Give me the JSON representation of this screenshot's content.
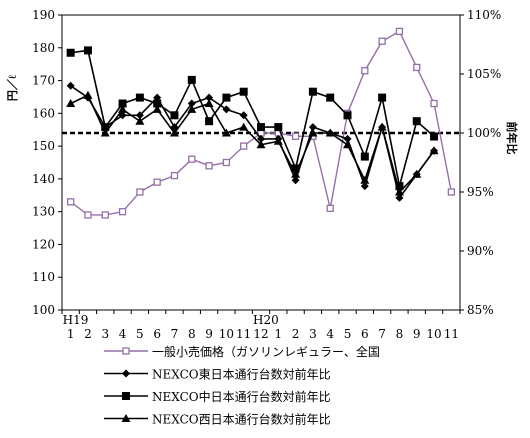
{
  "chart_data": {
    "type": "line",
    "x_labels": [
      "1",
      "2",
      "3",
      "4",
      "5",
      "6",
      "7",
      "8",
      "9",
      "10",
      "11",
      "12",
      "1",
      "2",
      "3",
      "4",
      "5",
      "6",
      "7",
      "8",
      "9",
      "10",
      "11"
    ],
    "year_labels": [
      "H19",
      "H20"
    ],
    "y_left": {
      "title": "円／ℓ",
      "range": [
        100,
        190
      ],
      "ticks": [
        "100",
        "110",
        "120",
        "130",
        "140",
        "150",
        "160",
        "170",
        "180",
        "190"
      ]
    },
    "y_right": {
      "title": "前年比",
      "range": [
        85,
        110
      ],
      "ticks": [
        "85%",
        "90%",
        "95%",
        "100%",
        "105%",
        "110%"
      ]
    },
    "reference_line": {
      "axis": "right",
      "value": 100,
      "style": "dashed"
    },
    "series": [
      {
        "name": "一般小売価格（ガソリンレギュラー、全国",
        "axis": "left",
        "color": "#9470a8",
        "marker": "open-square",
        "values": [
          133,
          129,
          129,
          130,
          136,
          139,
          141,
          146,
          144,
          145,
          150,
          154,
          154,
          153,
          153,
          131,
          160,
          173,
          182,
          185,
          174,
          163,
          136
        ]
      },
      {
        "name": "NEXCO東日本通行台数対前年比",
        "axis": "right",
        "color": "#000000",
        "marker": "diamond",
        "values": [
          104.0,
          103.0,
          100.5,
          101.5,
          101.5,
          103.0,
          100.5,
          102.5,
          103.0,
          102.0,
          101.5,
          99.5,
          99.5,
          96.0,
          100.5,
          100.0,
          99.5,
          95.5,
          100.5,
          94.5,
          96.5,
          98.5,
          null
        ]
      },
      {
        "name": "NEXCO中日本通行台数対前年比",
        "axis": "right",
        "color": "#000000",
        "marker": "filled-square",
        "values": [
          106.8,
          107.0,
          100.5,
          102.5,
          103.0,
          102.5,
          101.5,
          104.5,
          101.0,
          103.0,
          103.5,
          100.5,
          100.5,
          97.0,
          103.5,
          103.0,
          101.5,
          98.0,
          103.0,
          95.5,
          101.0,
          99.7,
          null
        ]
      },
      {
        "name": "NEXCO西日本通行台数対前年比",
        "axis": "right",
        "color": "#000000",
        "marker": "triangle",
        "values": [
          102.5,
          103.2,
          100.0,
          102.0,
          101.0,
          102.0,
          100.0,
          102.0,
          102.5,
          100.0,
          100.5,
          99.0,
          99.3,
          96.5,
          100.0,
          100.0,
          99.0,
          96.0,
          100.5,
          95.0,
          96.5,
          98.5,
          null
        ]
      }
    ]
  }
}
